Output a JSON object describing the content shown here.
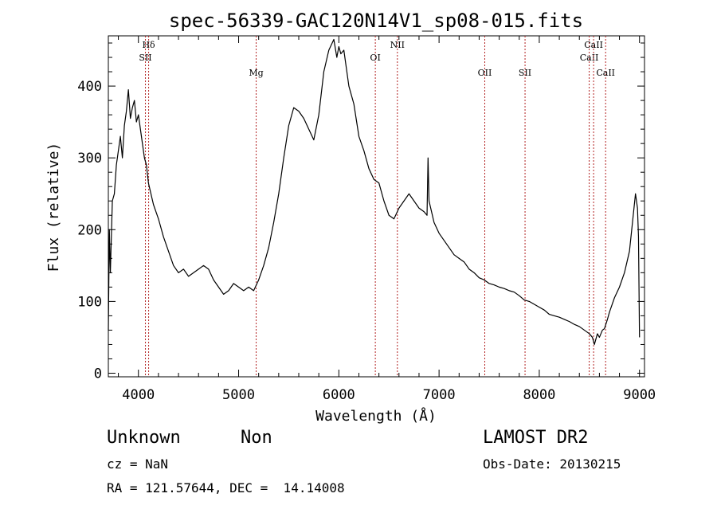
{
  "chart_data": {
    "type": "line",
    "title": "spec-56339-GAC120N14V1_sp08-015.fits",
    "xlabel": "Wavelength (Å)",
    "ylabel": "Flux (relative)",
    "xlim": [
      3700,
      9050
    ],
    "ylim": [
      -5,
      470
    ],
    "xticks": [
      {
        "value": 4000,
        "label": "4000"
      },
      {
        "value": 5000,
        "label": "5000"
      },
      {
        "value": 6000,
        "label": "6000"
      },
      {
        "value": 7000,
        "label": "7000"
      },
      {
        "value": 8000,
        "label": "8000"
      },
      {
        "value": 9000,
        "label": "9000"
      }
    ],
    "yticks": [
      {
        "value": 0,
        "label": "0"
      },
      {
        "value": 100,
        "label": "100"
      },
      {
        "value": 200,
        "label": "200"
      },
      {
        "value": 300,
        "label": "300"
      },
      {
        "value": 400,
        "label": "400"
      }
    ],
    "grid": false,
    "line_color": "#000000",
    "marker_color": "#b22222",
    "spectral_lines": [
      {
        "name": "Hδ",
        "wavelength": 4102,
        "row": 0
      },
      {
        "name": "SII",
        "wavelength": 4070,
        "row": 1
      },
      {
        "name": "Mg",
        "wavelength": 5175,
        "row": 2
      },
      {
        "name": "OI",
        "wavelength": 6364,
        "row": 1
      },
      {
        "name": "NII",
        "wavelength": 6584,
        "row": 0
      },
      {
        "name": "OII",
        "wavelength": 7456,
        "row": 2
      },
      {
        "name": "SII",
        "wavelength": 7858,
        "row": 2
      },
      {
        "name": "CaII",
        "wavelength": 8498,
        "row": 1
      },
      {
        "name": "CaII",
        "wavelength": 8542,
        "row": 0
      },
      {
        "name": "CaII",
        "wavelength": 8662,
        "row": 2
      }
    ],
    "series": [
      {
        "x": [
          3700,
          3710,
          3720,
          3740,
          3760,
          3780,
          3800,
          3820,
          3840,
          3860,
          3880,
          3900,
          3920,
          3940,
          3960,
          3980,
          4000,
          4020,
          4040,
          4060,
          4080,
          4100,
          4150,
          4200,
          4250,
          4300,
          4350,
          4400,
          4450,
          4500,
          4550,
          4600,
          4650,
          4700,
          4750,
          4800,
          4850,
          4900,
          4950,
          5000,
          5050,
          5100,
          5150,
          5200,
          5250,
          5300,
          5350,
          5400,
          5450,
          5500,
          5550,
          5600,
          5650,
          5700,
          5750,
          5800,
          5850,
          5900,
          5950,
          5980,
          6000,
          6020,
          6050,
          6080,
          6100,
          6150,
          6200,
          6250,
          6300,
          6350,
          6400,
          6450,
          6500,
          6550,
          6600,
          6650,
          6700,
          6750,
          6800,
          6850,
          6880,
          6890,
          6900,
          6950,
          7000,
          7050,
          7100,
          7150,
          7200,
          7250,
          7300,
          7350,
          7400,
          7450,
          7500,
          7550,
          7600,
          7650,
          7700,
          7750,
          7800,
          7850,
          7900,
          7950,
          8000,
          8050,
          8100,
          8150,
          8200,
          8250,
          8300,
          8350,
          8400,
          8450,
          8500,
          8530,
          8550,
          8580,
          8600,
          8630,
          8650,
          8680,
          8700,
          8750,
          8800,
          8850,
          8900,
          8930,
          8960,
          8980,
          8990,
          9000
        ],
        "y": [
          60,
          200,
          140,
          240,
          250,
          290,
          310,
          330,
          300,
          345,
          365,
          395,
          355,
          370,
          380,
          350,
          360,
          340,
          320,
          300,
          290,
          265,
          235,
          215,
          190,
          170,
          150,
          140,
          145,
          135,
          140,
          145,
          150,
          145,
          130,
          120,
          110,
          115,
          125,
          120,
          115,
          120,
          115,
          130,
          150,
          175,
          210,
          250,
          300,
          345,
          370,
          365,
          355,
          340,
          325,
          360,
          420,
          450,
          465,
          440,
          455,
          445,
          450,
          420,
          400,
          375,
          330,
          310,
          285,
          270,
          265,
          240,
          220,
          215,
          230,
          240,
          250,
          240,
          230,
          225,
          220,
          300,
          240,
          210,
          195,
          185,
          175,
          165,
          160,
          155,
          145,
          140,
          133,
          130,
          125,
          123,
          120,
          118,
          115,
          113,
          108,
          102,
          100,
          96,
          92,
          88,
          82,
          80,
          78,
          75,
          72,
          68,
          65,
          60,
          55,
          50,
          40,
          55,
          50,
          60,
          62,
          75,
          85,
          105,
          120,
          140,
          170,
          210,
          250,
          230,
          190,
          50
        ]
      }
    ]
  },
  "info": {
    "object_class": "Unknown",
    "object_subclass": "Non",
    "survey": "LAMOST DR2",
    "cz": "cz = NaN",
    "obs_date": "Obs-Date: 20130215",
    "coords": "RA = 121.57644, DEC =  14.14008"
  }
}
